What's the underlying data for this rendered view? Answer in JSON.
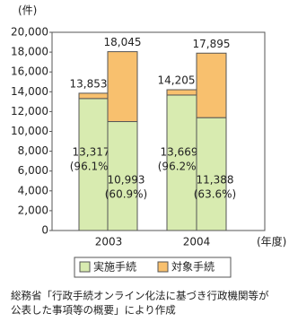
{
  "chart_data": {
    "type": "stacked-bar",
    "y_unit": "(件)",
    "x_unit": "(年度)",
    "groups": [
      "2003",
      "2004"
    ],
    "series": [
      {
        "name": "実施手続",
        "color": "#d8ebb0",
        "values": [
          13317,
          10993,
          13669,
          11388
        ],
        "value_labels": [
          "13,317",
          "10,993",
          "13,669",
          "11,388"
        ],
        "shares": [
          96.1,
          60.9,
          96.2,
          63.6
        ],
        "share_labels": [
          "(96.1%)",
          "(60.9%)",
          "(96.2%)",
          "(63.6%)"
        ]
      },
      {
        "name": "対象手続",
        "color": "#f8c06e",
        "values": [
          536,
          7052,
          536,
          6507
        ]
      }
    ],
    "totals": [
      13853,
      18045,
      14205,
      17895
    ],
    "total_labels": [
      "13,853",
      "18,045",
      "14,205",
      "17,895"
    ],
    "ylim": [
      0,
      20000
    ],
    "yticks": [
      0,
      {
        "value": 2000,
        "label": "2,000"
      },
      {
        "value": 4000,
        "label": "4,000"
      },
      {
        "value": 6000,
        "label": "6,000"
      },
      {
        "value": 8000,
        "label": "8,000"
      },
      {
        "value": 10000,
        "label": "10,000"
      },
      {
        "value": 12000,
        "label": "12,000"
      },
      {
        "value": 14000,
        "label": "14,000"
      },
      {
        "value": 16000,
        "label": "16,000"
      },
      {
        "value": 18000,
        "label": "18,000"
      },
      {
        "value": 20000,
        "label": "20,000"
      }
    ],
    "source": [
      "総務省「行政手続オンライン化法に基づき行政機関等が",
      "公表した事項等の概要」により作成"
    ]
  }
}
